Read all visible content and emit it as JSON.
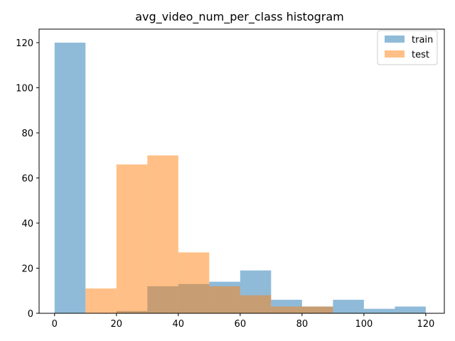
{
  "chart_data": {
    "type": "histogram",
    "title": "avg_video_num_per_class histogram",
    "xlabel": "",
    "ylabel": "",
    "xlim": [
      -5,
      126
    ],
    "ylim": [
      0,
      126
    ],
    "x_ticks": [
      0,
      20,
      40,
      60,
      80,
      100,
      120
    ],
    "y_ticks": [
      0,
      20,
      40,
      60,
      80,
      100,
      120
    ],
    "grid": false,
    "legend_position": "top-right",
    "series": [
      {
        "name": "train",
        "color": "#1f77b4",
        "alpha": 0.5,
        "bins": [
          {
            "x0": 0,
            "x1": 10,
            "count": 120
          },
          {
            "x0": 10,
            "x1": 20,
            "count": 0
          },
          {
            "x0": 20,
            "x1": 30,
            "count": 1
          },
          {
            "x0": 30,
            "x1": 40,
            "count": 12
          },
          {
            "x0": 40,
            "x1": 50,
            "count": 13
          },
          {
            "x0": 50,
            "x1": 60,
            "count": 14
          },
          {
            "x0": 60,
            "x1": 70,
            "count": 19
          },
          {
            "x0": 70,
            "x1": 80,
            "count": 6
          },
          {
            "x0": 80,
            "x1": 90,
            "count": 3
          },
          {
            "x0": 90,
            "x1": 100,
            "count": 6
          },
          {
            "x0": 100,
            "x1": 110,
            "count": 2
          },
          {
            "x0": 110,
            "x1": 120,
            "count": 3
          }
        ]
      },
      {
        "name": "test",
        "color": "#ff7f0e",
        "alpha": 0.5,
        "bins": [
          {
            "x0": 10,
            "x1": 20,
            "count": 11
          },
          {
            "x0": 20,
            "x1": 30,
            "count": 66
          },
          {
            "x0": 30,
            "x1": 40,
            "count": 70
          },
          {
            "x0": 40,
            "x1": 50,
            "count": 27
          },
          {
            "x0": 50,
            "x1": 60,
            "count": 12
          },
          {
            "x0": 60,
            "x1": 70,
            "count": 8
          },
          {
            "x0": 70,
            "x1": 80,
            "count": 3
          },
          {
            "x0": 80,
            "x1": 90,
            "count": 3
          }
        ]
      }
    ]
  }
}
